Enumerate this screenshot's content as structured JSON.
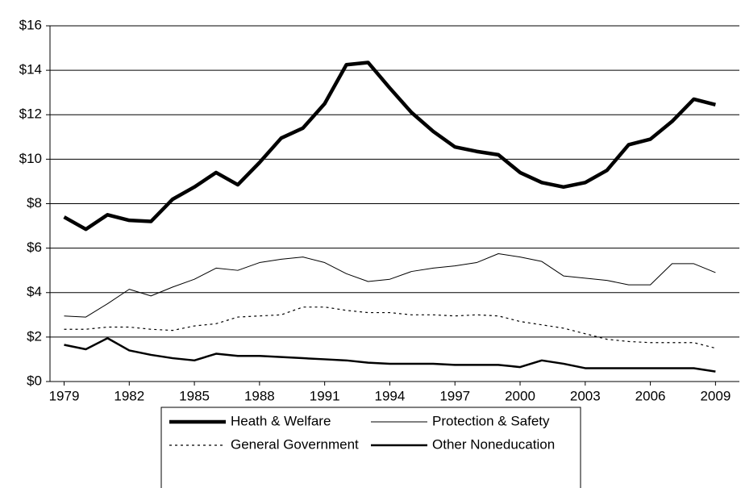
{
  "chart_data": {
    "type": "line",
    "x": [
      1979,
      1980,
      1981,
      1982,
      1983,
      1984,
      1985,
      1986,
      1987,
      1988,
      1989,
      1990,
      1991,
      1992,
      1993,
      1994,
      1995,
      1996,
      1997,
      1998,
      1999,
      2000,
      2001,
      2002,
      2003,
      2004,
      2005,
      2006,
      2007,
      2008,
      2009
    ],
    "series": [
      {
        "name": "Heath & Welfare",
        "color": "#000000",
        "line_width": 4.5,
        "dashed": false,
        "values": [
          7.4,
          6.85,
          7.5,
          7.25,
          7.2,
          8.2,
          8.75,
          9.4,
          8.85,
          9.85,
          10.95,
          11.4,
          12.5,
          14.25,
          14.35,
          13.2,
          12.1,
          11.25,
          10.55,
          10.35,
          10.2,
          9.4,
          8.95,
          8.75,
          8.95,
          9.5,
          10.65,
          10.9,
          11.7,
          12.7,
          12.45
        ]
      },
      {
        "name": "Protection & Safety",
        "color": "#000000",
        "line_width": 1,
        "dashed": false,
        "values": [
          2.95,
          2.9,
          3.5,
          4.15,
          3.85,
          4.25,
          4.6,
          5.1,
          5.0,
          5.35,
          5.5,
          5.6,
          5.35,
          4.85,
          4.5,
          4.6,
          4.95,
          5.1,
          5.2,
          5.35,
          5.75,
          5.6,
          5.4,
          4.75,
          4.65,
          4.55,
          4.35,
          4.35,
          5.3,
          5.3,
          4.9
        ]
      },
      {
        "name": "General Government",
        "color": "#000000",
        "line_width": 1.2,
        "dashed": true,
        "values": [
          2.35,
          2.35,
          2.45,
          2.45,
          2.35,
          2.3,
          2.5,
          2.6,
          2.9,
          2.95,
          3.0,
          3.35,
          3.35,
          3.2,
          3.1,
          3.1,
          3.0,
          3.0,
          2.95,
          3.0,
          2.95,
          2.7,
          2.55,
          2.4,
          2.15,
          1.9,
          1.8,
          1.75,
          1.75,
          1.75,
          1.5
        ]
      },
      {
        "name": "Other Noneducation",
        "color": "#000000",
        "line_width": 2.5,
        "dashed": false,
        "values": [
          1.65,
          1.45,
          1.95,
          1.4,
          1.2,
          1.05,
          0.95,
          1.25,
          1.15,
          1.15,
          1.1,
          1.05,
          1.0,
          0.95,
          0.85,
          0.8,
          0.8,
          0.8,
          0.75,
          0.75,
          0.75,
          0.65,
          0.95,
          0.8,
          0.6,
          0.6,
          0.6,
          0.6,
          0.6,
          0.6,
          0.45
        ]
      }
    ],
    "xlim": [
      1978.35,
      2010.1
    ],
    "xticks": [
      1979,
      1982,
      1985,
      1988,
      1991,
      1994,
      1997,
      2000,
      2003,
      2006,
      2009
    ],
    "ylim": [
      0,
      16
    ],
    "yticks": [
      {
        "value": 0,
        "label": "$0"
      },
      {
        "value": 2,
        "label": "$2"
      },
      {
        "value": 4,
        "label": "$4"
      },
      {
        "value": 6,
        "label": "$6"
      },
      {
        "value": 8,
        "label": "$8"
      },
      {
        "value": 10,
        "label": "$10"
      },
      {
        "value": 12,
        "label": "$12"
      },
      {
        "value": 14,
        "label": "$14"
      },
      {
        "value": 16,
        "label": "$16"
      }
    ],
    "grid": true
  }
}
